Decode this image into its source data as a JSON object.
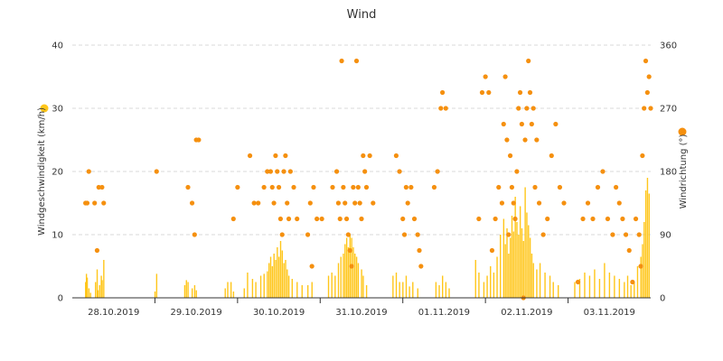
{
  "chart_data": {
    "type": "bar+scatter",
    "title": "Wind",
    "x_categories": [
      "28.10.2019",
      "29.10.2019",
      "30.10.2019",
      "31.10.2019",
      "01.11.2019",
      "02.11.2019",
      "03.11.2019"
    ],
    "y_left": {
      "label": "Windgeschwindigkeit (km/h)",
      "ylim": [
        0,
        40
      ],
      "ticks": [
        "0",
        "10",
        "20",
        "30",
        "40"
      ]
    },
    "y_right": {
      "label": "Windrichtung (°)",
      "ylim": [
        0,
        360
      ],
      "ticks": [
        "0",
        "90",
        "180",
        "270",
        "360"
      ]
    },
    "grid": true,
    "series": [
      {
        "name": "Windgeschwindigkeit",
        "color": "#ffc61a",
        "type": "bar",
        "points": [
          [
            0.16,
            2.5
          ],
          [
            0.17,
            3.8
          ],
          [
            0.18,
            3.2
          ],
          [
            0.2,
            1.5
          ],
          [
            0.22,
            0.8
          ],
          [
            0.28,
            2.5
          ],
          [
            0.3,
            4.5
          ],
          [
            0.31,
            1.2
          ],
          [
            0.33,
            2.0
          ],
          [
            0.35,
            3.5
          ],
          [
            0.36,
            2.8
          ],
          [
            0.38,
            6.0
          ],
          [
            1.0,
            1.0
          ],
          [
            1.02,
            3.8
          ],
          [
            1.36,
            2.0
          ],
          [
            1.38,
            2.8
          ],
          [
            1.4,
            2.5
          ],
          [
            1.45,
            1.5
          ],
          [
            1.48,
            2.0
          ],
          [
            1.5,
            1.2
          ],
          [
            1.85,
            1.5
          ],
          [
            1.88,
            2.5
          ],
          [
            1.92,
            2.5
          ],
          [
            1.95,
            1.0
          ],
          [
            2.08,
            1.5
          ],
          [
            2.12,
            4.0
          ],
          [
            2.18,
            3.0
          ],
          [
            2.22,
            2.5
          ],
          [
            2.28,
            3.5
          ],
          [
            2.32,
            3.8
          ],
          [
            2.36,
            4.2
          ],
          [
            2.38,
            5.5
          ],
          [
            2.4,
            6.5
          ],
          [
            2.42,
            5.0
          ],
          [
            2.44,
            7.0
          ],
          [
            2.46,
            6.0
          ],
          [
            2.48,
            8.0
          ],
          [
            2.5,
            6.5
          ],
          [
            2.52,
            9.0
          ],
          [
            2.54,
            7.5
          ],
          [
            2.56,
            5.5
          ],
          [
            2.58,
            6.0
          ],
          [
            2.6,
            4.5
          ],
          [
            2.62,
            3.5
          ],
          [
            2.66,
            3.0
          ],
          [
            2.72,
            2.5
          ],
          [
            2.78,
            2.0
          ],
          [
            2.85,
            2.0
          ],
          [
            2.9,
            2.5
          ],
          [
            3.1,
            3.5
          ],
          [
            3.14,
            4.0
          ],
          [
            3.18,
            3.5
          ],
          [
            3.22,
            5.5
          ],
          [
            3.25,
            6.5
          ],
          [
            3.28,
            7.0
          ],
          [
            3.3,
            8.5
          ],
          [
            3.32,
            9.5
          ],
          [
            3.34,
            8.0
          ],
          [
            3.36,
            10.0
          ],
          [
            3.38,
            9.5
          ],
          [
            3.4,
            8.0
          ],
          [
            3.42,
            7.0
          ],
          [
            3.44,
            6.5
          ],
          [
            3.46,
            5.5
          ],
          [
            3.5,
            4.5
          ],
          [
            3.52,
            3.5
          ],
          [
            3.56,
            2.0
          ],
          [
            3.88,
            3.5
          ],
          [
            3.92,
            4.0
          ],
          [
            3.96,
            2.5
          ],
          [
            4.0,
            2.5
          ],
          [
            4.04,
            3.5
          ],
          [
            4.08,
            1.8
          ],
          [
            4.12,
            2.5
          ],
          [
            4.18,
            1.5
          ],
          [
            4.4,
            2.5
          ],
          [
            4.44,
            2.0
          ],
          [
            4.48,
            3.5
          ],
          [
            4.52,
            2.5
          ],
          [
            4.56,
            1.5
          ],
          [
            4.88,
            6.0
          ],
          [
            4.92,
            4.0
          ],
          [
            4.98,
            2.5
          ],
          [
            5.02,
            3.5
          ],
          [
            5.06,
            5.0
          ],
          [
            5.1,
            4.0
          ],
          [
            5.14,
            6.5
          ],
          [
            5.18,
            10.0
          ],
          [
            5.22,
            12.5
          ],
          [
            5.24,
            8.5
          ],
          [
            5.26,
            11.0
          ],
          [
            5.28,
            7.0
          ],
          [
            5.3,
            9.5
          ],
          [
            5.32,
            13.0
          ],
          [
            5.34,
            10.5
          ],
          [
            5.36,
            16.0
          ],
          [
            5.38,
            12.0
          ],
          [
            5.4,
            10.0
          ],
          [
            5.42,
            14.5
          ],
          [
            5.44,
            11.0
          ],
          [
            5.46,
            9.0
          ],
          [
            5.48,
            17.5
          ],
          [
            5.5,
            13.5
          ],
          [
            5.52,
            11.5
          ],
          [
            5.54,
            9.5
          ],
          [
            5.56,
            7.0
          ],
          [
            5.58,
            5.5
          ],
          [
            5.62,
            4.5
          ],
          [
            5.66,
            5.5
          ],
          [
            5.72,
            4.0
          ],
          [
            5.78,
            3.5
          ],
          [
            5.82,
            2.5
          ],
          [
            5.88,
            2.0
          ],
          [
            6.08,
            2.5
          ],
          [
            6.14,
            3.0
          ],
          [
            6.2,
            4.0
          ],
          [
            6.26,
            3.5
          ],
          [
            6.32,
            4.5
          ],
          [
            6.38,
            3.0
          ],
          [
            6.44,
            5.5
          ],
          [
            6.5,
            4.0
          ],
          [
            6.56,
            3.5
          ],
          [
            6.62,
            3.0
          ],
          [
            6.68,
            2.5
          ],
          [
            6.72,
            3.5
          ],
          [
            6.76,
            2.0
          ],
          [
            6.8,
            2.5
          ],
          [
            6.84,
            5.0
          ],
          [
            6.88,
            6.5
          ],
          [
            6.9,
            8.5
          ],
          [
            6.92,
            12.0
          ],
          [
            6.94,
            17.0
          ],
          [
            6.96,
            19.0
          ],
          [
            6.98,
            16.5
          ]
        ]
      },
      {
        "name": "Windrichtung",
        "color": "#f5900f",
        "type": "scatter",
        "points": [
          [
            0.16,
            135
          ],
          [
            0.18,
            135
          ],
          [
            0.2,
            180
          ],
          [
            0.27,
            135
          ],
          [
            0.3,
            67.5
          ],
          [
            0.32,
            157.5
          ],
          [
            0.36,
            157.5
          ],
          [
            0.38,
            135
          ],
          [
            1.02,
            180
          ],
          [
            1.4,
            157.5
          ],
          [
            1.45,
            135
          ],
          [
            1.48,
            90
          ],
          [
            1.5,
            225
          ],
          [
            1.53,
            225
          ],
          [
            1.95,
            112.5
          ],
          [
            2.0,
            157.5
          ],
          [
            2.15,
            202.5
          ],
          [
            2.2,
            135
          ],
          [
            2.25,
            135
          ],
          [
            2.32,
            157.5
          ],
          [
            2.36,
            180
          ],
          [
            2.4,
            180
          ],
          [
            2.42,
            157.5
          ],
          [
            2.44,
            135
          ],
          [
            2.46,
            202.5
          ],
          [
            2.48,
            180
          ],
          [
            2.5,
            157.5
          ],
          [
            2.52,
            112.5
          ],
          [
            2.54,
            90
          ],
          [
            2.56,
            180
          ],
          [
            2.58,
            202.5
          ],
          [
            2.6,
            135
          ],
          [
            2.62,
            112.5
          ],
          [
            2.64,
            180
          ],
          [
            2.68,
            157.5
          ],
          [
            2.72,
            112.5
          ],
          [
            2.85,
            90
          ],
          [
            2.88,
            135
          ],
          [
            2.9,
            45
          ],
          [
            2.92,
            157.5
          ],
          [
            2.96,
            112.5
          ],
          [
            3.02,
            112.5
          ],
          [
            3.15,
            157.5
          ],
          [
            3.2,
            180
          ],
          [
            3.22,
            135
          ],
          [
            3.24,
            112.5
          ],
          [
            3.26,
            337.5
          ],
          [
            3.28,
            157.5
          ],
          [
            3.3,
            135
          ],
          [
            3.32,
            112.5
          ],
          [
            3.34,
            90
          ],
          [
            3.36,
            67.5
          ],
          [
            3.38,
            45
          ],
          [
            3.4,
            157.5
          ],
          [
            3.42,
            135
          ],
          [
            3.44,
            337.5
          ],
          [
            3.46,
            157.5
          ],
          [
            3.48,
            135
          ],
          [
            3.5,
            112.5
          ],
          [
            3.52,
            202.5
          ],
          [
            3.54,
            180
          ],
          [
            3.56,
            157.5
          ],
          [
            3.6,
            202.5
          ],
          [
            3.64,
            135
          ],
          [
            3.92,
            202.5
          ],
          [
            3.96,
            180
          ],
          [
            4.0,
            112.5
          ],
          [
            4.02,
            90
          ],
          [
            4.04,
            157.5
          ],
          [
            4.06,
            135
          ],
          [
            4.1,
            157.5
          ],
          [
            4.14,
            112.5
          ],
          [
            4.18,
            90
          ],
          [
            4.2,
            67.5
          ],
          [
            4.22,
            45
          ],
          [
            4.38,
            157.5
          ],
          [
            4.42,
            180
          ],
          [
            4.46,
            270
          ],
          [
            4.48,
            292.5
          ],
          [
            4.52,
            270
          ],
          [
            4.92,
            112.5
          ],
          [
            4.96,
            292.5
          ],
          [
            5.0,
            315
          ],
          [
            5.04,
            292.5
          ],
          [
            5.08,
            67.5
          ],
          [
            5.12,
            112.5
          ],
          [
            5.16,
            157.5
          ],
          [
            5.2,
            135
          ],
          [
            5.22,
            247.5
          ],
          [
            5.24,
            315
          ],
          [
            5.26,
            225
          ],
          [
            5.28,
            90
          ],
          [
            5.3,
            202.5
          ],
          [
            5.32,
            157.5
          ],
          [
            5.34,
            135
          ],
          [
            5.36,
            112.5
          ],
          [
            5.38,
            180
          ],
          [
            5.4,
            270
          ],
          [
            5.42,
            292.5
          ],
          [
            5.44,
            247.5
          ],
          [
            5.46,
            0
          ],
          [
            5.48,
            225
          ],
          [
            5.5,
            270
          ],
          [
            5.52,
            337.5
          ],
          [
            5.54,
            292.5
          ],
          [
            5.56,
            247.5
          ],
          [
            5.58,
            270
          ],
          [
            5.6,
            157.5
          ],
          [
            5.62,
            225
          ],
          [
            5.65,
            135
          ],
          [
            5.7,
            90
          ],
          [
            5.75,
            112.5
          ],
          [
            5.8,
            202.5
          ],
          [
            5.85,
            247.5
          ],
          [
            5.9,
            157.5
          ],
          [
            5.95,
            135
          ],
          [
            6.12,
            22.5
          ],
          [
            6.18,
            112.5
          ],
          [
            6.24,
            135
          ],
          [
            6.3,
            112.5
          ],
          [
            6.36,
            157.5
          ],
          [
            6.42,
            180
          ],
          [
            6.48,
            112.5
          ],
          [
            6.54,
            90
          ],
          [
            6.58,
            157.5
          ],
          [
            6.62,
            135
          ],
          [
            6.66,
            112.5
          ],
          [
            6.7,
            90
          ],
          [
            6.74,
            67.5
          ],
          [
            6.78,
            22.5
          ],
          [
            6.82,
            112.5
          ],
          [
            6.86,
            90
          ],
          [
            6.88,
            45
          ],
          [
            6.9,
            202.5
          ],
          [
            6.92,
            270
          ],
          [
            6.94,
            337.5
          ],
          [
            6.96,
            292.5
          ],
          [
            6.98,
            315
          ],
          [
            7.0,
            270
          ]
        ]
      }
    ]
  }
}
